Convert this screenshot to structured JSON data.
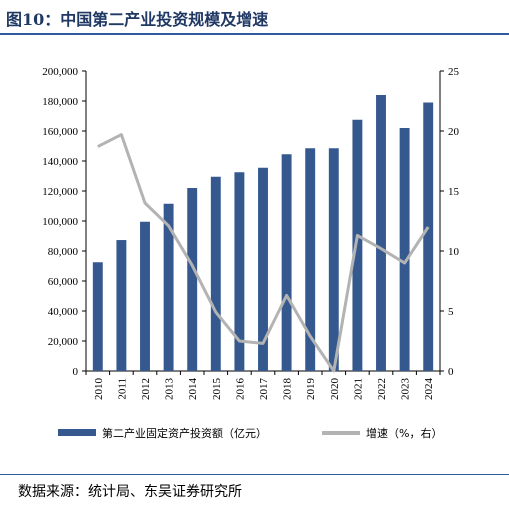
{
  "header": {
    "title": "图10：中国第二产业投资规模及增速"
  },
  "source": "数据来源：统计局、东吴证券研究所",
  "colors": {
    "bar": "#35598f",
    "line": "#b3b3b3",
    "accent": "#2e5aa0"
  },
  "chart_data": {
    "type": "bar",
    "title": "",
    "categories": [
      "2010",
      "2011",
      "2012",
      "2013",
      "2014",
      "2015",
      "2016",
      "2017",
      "2018",
      "2019",
      "2020",
      "2021",
      "2022",
      "2023",
      "2024"
    ],
    "series": [
      {
        "name": "第二产业固定资产投资额（亿元）",
        "type": "bar",
        "axis": "left",
        "values": [
          72500,
          87300,
          99500,
          111500,
          122000,
          129500,
          132500,
          135500,
          144500,
          148500,
          148500,
          167500,
          184000,
          162000,
          179000
        ]
      },
      {
        "name": "增速（%，右）",
        "type": "line",
        "axis": "right",
        "values": [
          18.7,
          19.7,
          14.0,
          12.1,
          8.8,
          4.9,
          2.5,
          2.3,
          6.3,
          2.9,
          0.0,
          11.3,
          10.2,
          9.0,
          12.0
        ]
      }
    ],
    "y_left": {
      "lim": [
        0,
        200000
      ],
      "ticks": [
        "0",
        "20,000",
        "40,000",
        "60,000",
        "80,000",
        "100,000",
        "120,000",
        "140,000",
        "160,000",
        "180,000",
        "200,000"
      ]
    },
    "y_right": {
      "lim": [
        0,
        25
      ],
      "ticks": [
        "0",
        "5",
        "10",
        "15",
        "20",
        "25"
      ]
    },
    "legend": {
      "placement": "bottom",
      "items": [
        "第二产业固定资产投资额（亿元）",
        "增速（%，右）"
      ]
    },
    "grid": false
  }
}
